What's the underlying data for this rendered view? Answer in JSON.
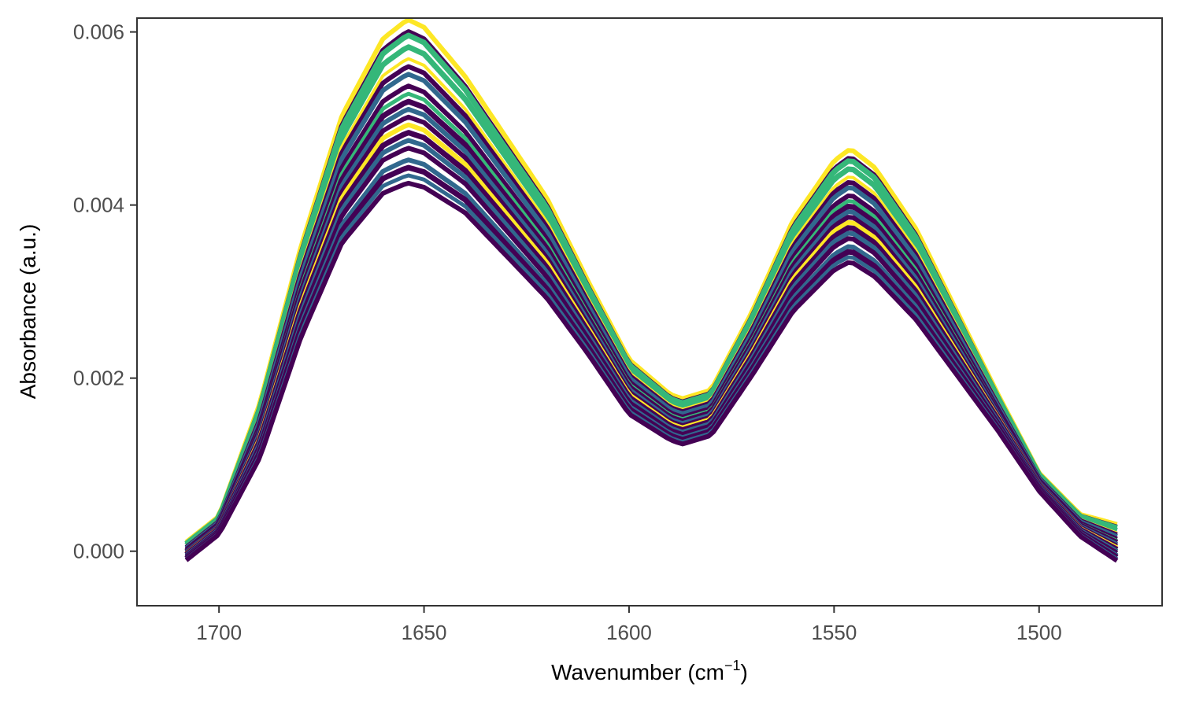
{
  "chart_data": {
    "type": "line",
    "title": "",
    "xlabel": "Wavenumber (cm",
    "xlabel_sup": "−1",
    "xlabel_close": ")",
    "ylabel": "Absorbance (a.u.)",
    "x_reversed": true,
    "xlim": [
      1720,
      1470
    ],
    "ylim": [
      -0.00063,
      0.00616
    ],
    "x_ticks": [
      1700,
      1650,
      1600,
      1550,
      1500
    ],
    "y_ticks": [
      0.0,
      0.002,
      0.004,
      0.006
    ],
    "x_tick_labels": [
      "1700",
      "1650",
      "1600",
      "1550",
      "1500"
    ],
    "y_tick_labels": [
      "0.000",
      "0.002",
      "0.004",
      "0.006"
    ],
    "grid": false,
    "legend": "none",
    "x_range_data": [
      1708,
      1481
    ],
    "profile": {
      "x": [
        1708,
        1700,
        1690,
        1680,
        1670,
        1660,
        1654,
        1650,
        1640,
        1630,
        1620,
        1610,
        1600,
        1590,
        1587,
        1580,
        1570,
        1560,
        1550,
        1546,
        1540,
        1530,
        1520,
        1510,
        1500,
        1490,
        1481
      ],
      "base": [
        0.0,
        0.0003,
        0.0014,
        0.003,
        0.0043,
        0.00503,
        0.0052,
        0.00513,
        0.0047,
        0.0041,
        0.0035,
        0.0027,
        0.0019,
        0.00155,
        0.0015,
        0.0016,
        0.0024,
        0.0033,
        0.00388,
        0.004,
        0.0038,
        0.0032,
        0.0024,
        0.0016,
        0.0008,
        0.0003,
        0.0001
      ],
      "amp": [
        0.0001,
        0.0001,
        0.0003,
        0.0005,
        0.0007,
        0.00085,
        0.0009,
        0.00088,
        0.00075,
        0.00065,
        0.00055,
        0.0004,
        0.0003,
        0.00025,
        0.00025,
        0.00025,
        0.00035,
        0.0005,
        0.0006,
        0.00062,
        0.0006,
        0.0005,
        0.00035,
        0.0002,
        0.0001,
        0.00012,
        0.0002
      ]
    },
    "series": [
      {
        "color": "#fde725",
        "level": 1.05,
        "width": 6
      },
      {
        "color": "#440154",
        "level": 0.9,
        "width": 6
      },
      {
        "color": "#35b779",
        "level": 0.85,
        "width": 7
      },
      {
        "color": "#35b779",
        "level": 0.7,
        "width": 7
      },
      {
        "color": "#fde725",
        "level": 0.55,
        "width": 4
      },
      {
        "color": "#440154",
        "level": 0.45,
        "width": 6
      },
      {
        "color": "#31688e",
        "level": 0.35,
        "width": 6
      },
      {
        "color": "#440154",
        "level": 0.2,
        "width": 6
      },
      {
        "color": "#35b779",
        "level": 0.1,
        "width": 5
      },
      {
        "color": "#440154",
        "level": 0.0,
        "width": 7
      },
      {
        "color": "#31688e",
        "level": -0.1,
        "width": 6
      },
      {
        "color": "#440154",
        "level": -0.2,
        "width": 6
      },
      {
        "color": "#fde725",
        "level": -0.3,
        "width": 6
      },
      {
        "color": "#440154",
        "level": -0.4,
        "width": 7
      },
      {
        "color": "#31688e",
        "level": -0.5,
        "width": 6
      },
      {
        "color": "#440154",
        "level": -0.6,
        "width": 6
      },
      {
        "color": "#31688e",
        "level": -0.75,
        "width": 6
      },
      {
        "color": "#440154",
        "level": -0.85,
        "width": 7
      },
      {
        "color": "#31688e",
        "level": -0.95,
        "width": 5
      },
      {
        "color": "#440154",
        "level": -1.05,
        "width": 6
      }
    ]
  }
}
